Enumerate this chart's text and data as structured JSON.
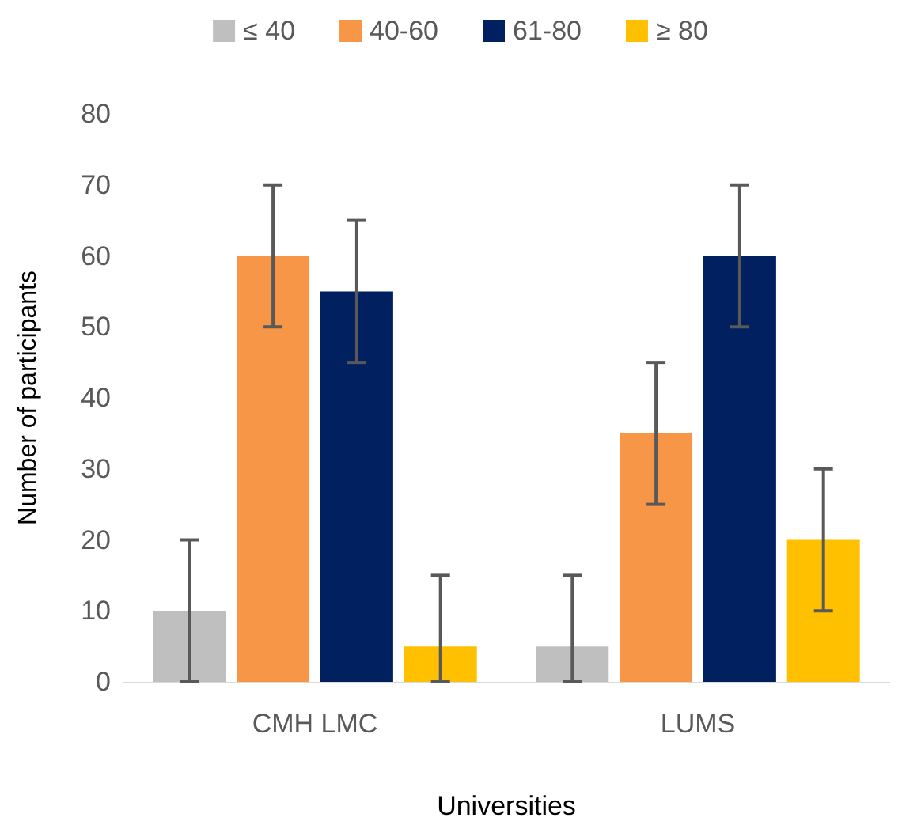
{
  "chart_data": {
    "type": "bar",
    "xlabel": "Universities",
    "ylabel": "Number of participants",
    "categories": [
      "CMH LMC",
      "LUMS"
    ],
    "series": [
      {
        "name": "≤ 40",
        "color": "#bfbfbf",
        "values": [
          10,
          5
        ],
        "errors": [
          10,
          [
            0,
            15
          ]
        ]
      },
      {
        "name": "40-60",
        "color": "#f79646",
        "values": [
          60,
          35
        ],
        "errors": [
          10,
          10
        ]
      },
      {
        "name": "61-80",
        "color": "#002060",
        "values": [
          55,
          60
        ],
        "errors": [
          10,
          10
        ]
      },
      {
        "name": "≥ 80",
        "color": "#ffc000",
        "values": [
          5,
          20
        ],
        "errors": [
          [
            0,
            15
          ],
          10
        ]
      }
    ],
    "ylim": [
      0,
      80
    ],
    "yticks": [
      0,
      10,
      20,
      30,
      40,
      50,
      60,
      70,
      80
    ],
    "grid": false,
    "legend": "top"
  }
}
